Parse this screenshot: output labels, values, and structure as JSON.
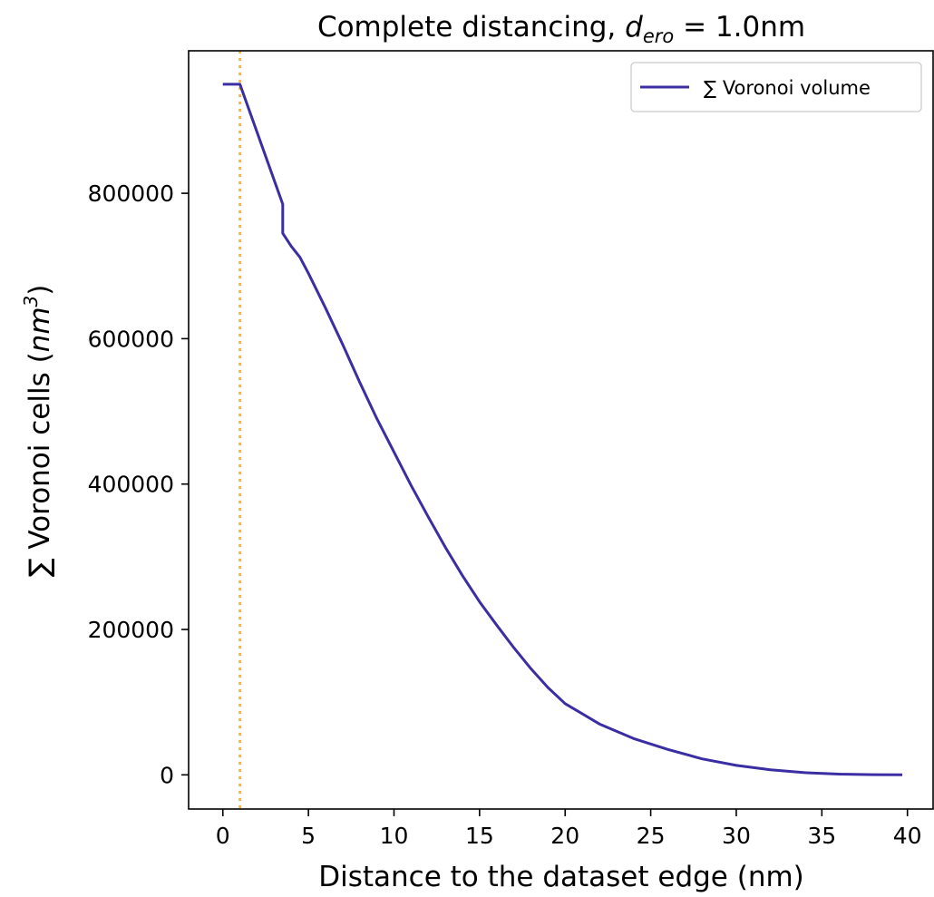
{
  "chart_data": {
    "type": "line",
    "title": {
      "prefix": "Complete distancing, ",
      "var": "d",
      "sub": "ero",
      "suffix": " = 1.0nm"
    },
    "xlabel": "Distance to the dataset edge (nm)",
    "ylabel": {
      "prefix": "∑ Voronoi cells (",
      "unit": "nm",
      "sup": "3",
      "suffix": ")"
    },
    "xlim": [
      -2,
      41.5
    ],
    "ylim": [
      -47000,
      996000
    ],
    "xticks": [
      0,
      5,
      10,
      15,
      20,
      25,
      30,
      35,
      40
    ],
    "yticks": [
      0,
      200000,
      400000,
      600000,
      800000
    ],
    "grid": false,
    "legend_position": "top-right",
    "reference_line": {
      "x": 1.0,
      "color": "#ffb533",
      "style": "dotted"
    },
    "series": [
      {
        "name": "∑ Voronoi volume",
        "color": "#3b2ea3",
        "x": [
          0,
          1.0,
          3.5,
          3.5,
          4,
          4.5,
          5,
          6,
          7,
          8,
          9,
          10,
          11,
          12,
          13,
          14,
          15,
          16,
          17,
          18,
          19,
          20,
          22,
          24,
          26,
          28,
          30,
          32,
          34,
          36,
          38,
          39.7
        ],
        "y": [
          950000,
          950000,
          785000,
          745000,
          727000,
          712000,
          690000,
          642000,
          592000,
          540000,
          490000,
          444000,
          398000,
          355000,
          313000,
          274000,
          238000,
          206000,
          175000,
          146000,
          120000,
          98000,
          70000,
          50000,
          35000,
          22000,
          13000,
          7000,
          3000,
          1000,
          300,
          100
        ]
      }
    ]
  }
}
